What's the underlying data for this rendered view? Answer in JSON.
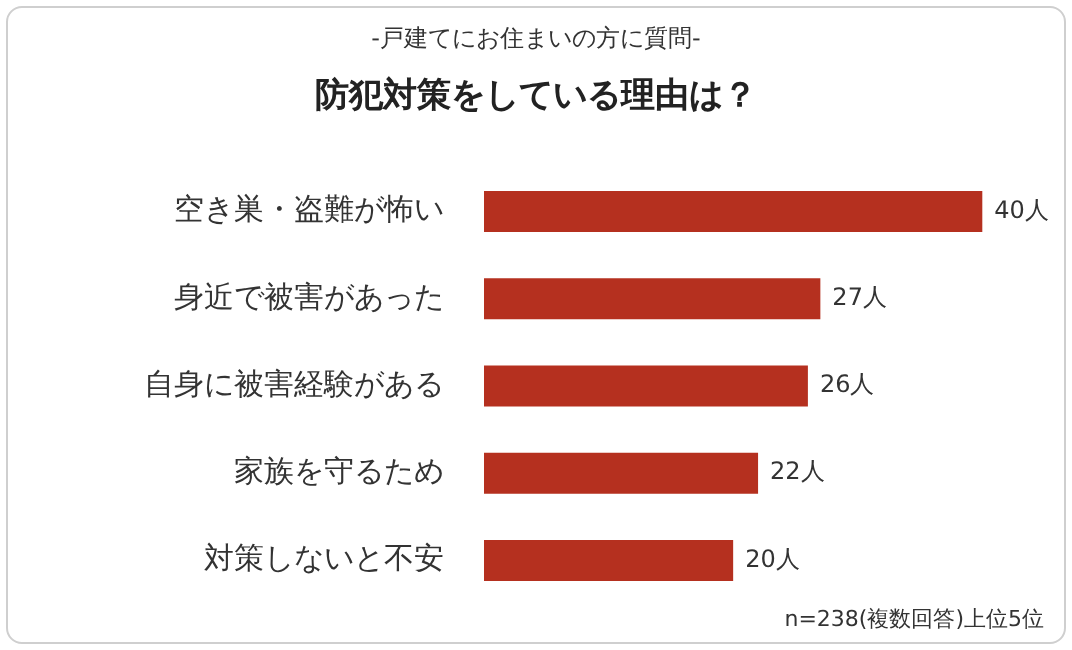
{
  "chart_data": {
    "type": "bar",
    "orientation": "horizontal",
    "subtitle": "-戸建てにお住まいの方に質問-",
    "title": "防犯対策をしている理由は？",
    "categories": [
      "空き巣・盗難が怖い",
      "身近で被害があった",
      "自身に被害経験がある",
      "家族を守るため",
      "対策しないと不安"
    ],
    "values": [
      40,
      27,
      26,
      22,
      20
    ],
    "value_labels": [
      "40人",
      "27人",
      "26人",
      "22人",
      "20人"
    ],
    "color": "#b5301f",
    "annotations": [
      "n=238(複数回答)上位5位"
    ]
  }
}
